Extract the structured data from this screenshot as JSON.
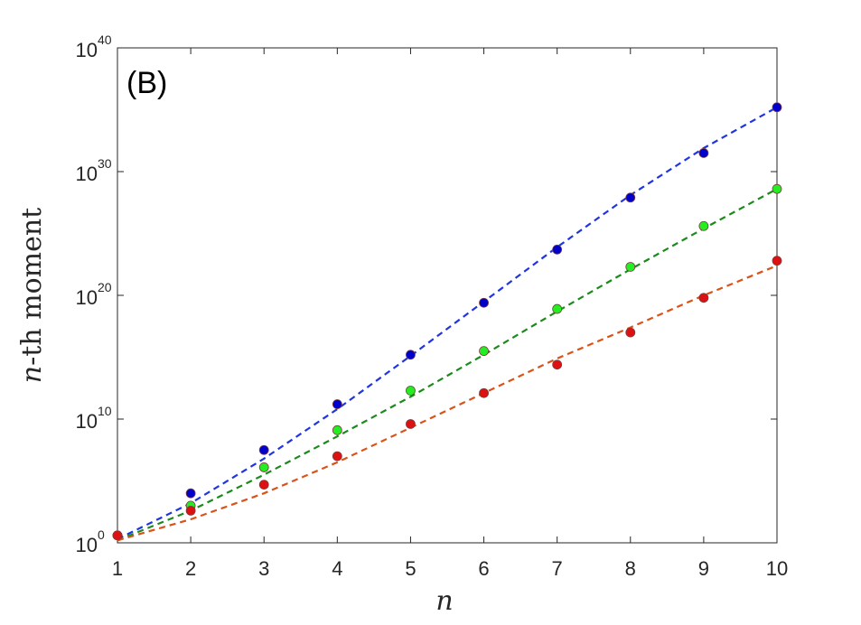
{
  "chart_data": {
    "type": "scatter",
    "panel_label": "(B)",
    "xlabel": "n",
    "ylabel_italic": "n",
    "ylabel_rest": "-th moment",
    "x_ticks": [
      1,
      2,
      3,
      4,
      5,
      6,
      7,
      8,
      9,
      10
    ],
    "y_scale": "log",
    "ylim_exponents": [
      0,
      40
    ],
    "y_ticks": [
      {
        "exp": 0,
        "base": "10",
        "sup": "0"
      },
      {
        "exp": 10,
        "base": "10",
        "sup": "10"
      },
      {
        "exp": 20,
        "base": "10",
        "sup": "20"
      },
      {
        "exp": 30,
        "base": "10",
        "sup": "30"
      },
      {
        "exp": 40,
        "base": "10",
        "sup": "40"
      }
    ],
    "xlim": [
      1,
      10
    ],
    "grid": false,
    "series": [
      {
        "color": "#0000cc",
        "line_color": "#1f35e0",
        "x": [
          1,
          2,
          3,
          4,
          5,
          6,
          7,
          8,
          9,
          10
        ],
        "points_log10": [
          0.6,
          4.0,
          7.5,
          11.2,
          15.2,
          19.4,
          23.7,
          27.9,
          31.5,
          35.2
        ],
        "fit_log10": [
          0.3,
          3.2,
          6.8,
          10.8,
          15.1,
          19.5,
          23.9,
          28.1,
          31.9,
          35.2
        ]
      },
      {
        "color": "#22ee22",
        "line_color": "#1a8a1a",
        "x": [
          1,
          2,
          3,
          4,
          5,
          6,
          7,
          8,
          9,
          10
        ],
        "points_log10": [
          0.6,
          3.0,
          6.1,
          9.1,
          12.3,
          15.5,
          18.9,
          22.3,
          25.6,
          28.6
        ],
        "fit_log10": [
          0.2,
          2.6,
          5.5,
          8.6,
          11.8,
          15.2,
          18.7,
          22.1,
          25.4,
          28.6
        ]
      },
      {
        "color": "#dd1111",
        "line_color": "#d95319",
        "x": [
          1,
          2,
          3,
          4,
          5,
          6,
          7,
          8,
          9,
          10
        ],
        "points_log10": [
          0.6,
          2.6,
          4.7,
          7.0,
          9.6,
          12.1,
          14.4,
          17.0,
          19.8,
          22.8
        ],
        "fit_log10": [
          0.2,
          1.9,
          4.0,
          6.5,
          9.3,
          12.1,
          14.9,
          17.4,
          20.0,
          22.4
        ]
      }
    ]
  }
}
